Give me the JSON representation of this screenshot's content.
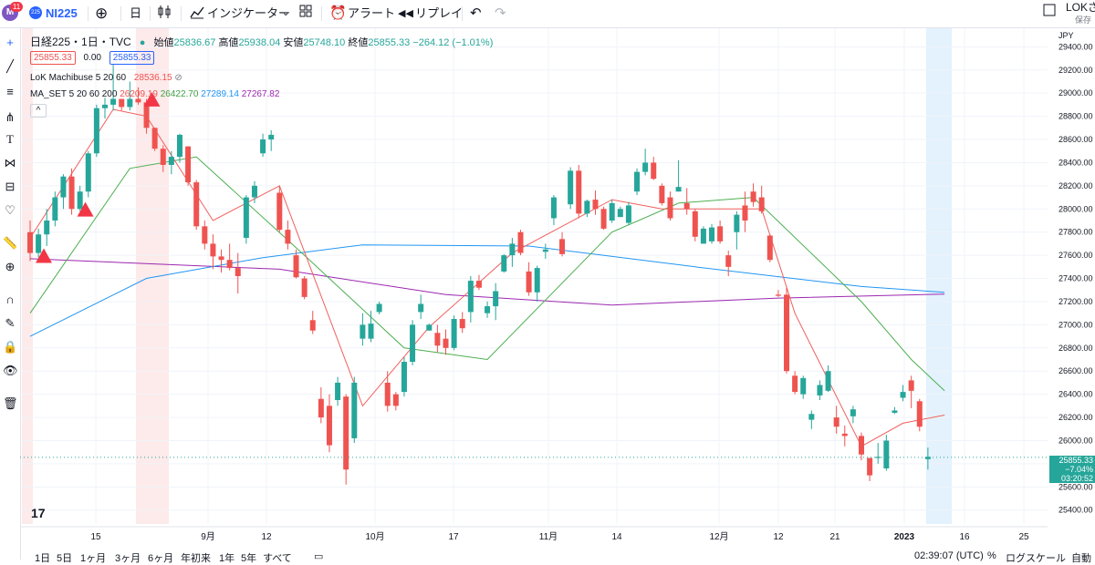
{
  "header": {
    "notif_count": "11",
    "avatar_letter": "M",
    "symbol_badge": "225",
    "symbol": "NI225",
    "interval": "日",
    "indicators_label": "インジケーター",
    "alert_label": "アラート",
    "replay_label": "リプレイ",
    "user": "LOKさん",
    "save_label": "保存"
  },
  "legend": {
    "title": "日経225・1日・TVC",
    "open_label": "始値",
    "open": "25836.67",
    "high_label": "高値",
    "high": "25938.04",
    "low_label": "安値",
    "low": "25748.10",
    "close_label": "終値",
    "close": "25855.33",
    "change": "−264.12 (−1.01%)",
    "bid": "25855.33",
    "spread": "0.00",
    "ask": "25855.33",
    "ind1_name": "LoK Machibuse 5 20 60",
    "ind1_value": "28536.15",
    "ind2_name": "MA_SET 5 20 60 200",
    "ind2_v1": "26209.19",
    "ind2_v2": "26422.70",
    "ind2_v3": "27289.14",
    "ind2_v4": "27267.82",
    "collapse": "^"
  },
  "price_axis": {
    "currency": "JPY",
    "last_price": "25855.33",
    "last_change": "−7.04%",
    "countdown": "03:20:52"
  },
  "bottom": {
    "ranges": [
      "1日",
      "5日",
      "1ヶ月",
      "3ヶ月",
      "6ヶ月",
      "年初来",
      "1年",
      "5年",
      "すべて"
    ],
    "time": "02:39:07 (UTC)",
    "percent": "%",
    "log_scale": "ログスケール",
    "auto": "自動"
  },
  "colors": {
    "up": "#26a69a",
    "down": "#ef5350",
    "ma5": "#f0605d",
    "ma20": "#4caf50",
    "ma60": "#2196f3",
    "ma200": "#9c27b0",
    "accent": "#2962ff"
  },
  "chart_data": {
    "type": "candlestick",
    "xlabels": [
      "15",
      "9月",
      "12",
      "10月",
      "17",
      "11月",
      "14",
      "12月",
      "12",
      "21",
      "2023",
      "16",
      "25"
    ],
    "yticks": [
      25400,
      25600,
      25800,
      26000,
      26200,
      26400,
      26600,
      26800,
      27000,
      27200,
      27400,
      27600,
      27800,
      28000,
      28200,
      28400,
      28600,
      28800,
      29000,
      29200,
      29400
    ],
    "ylim": [
      25280,
      29560
    ],
    "candles": [
      [
        27800,
        27900,
        27550,
        27620
      ],
      [
        27620,
        27830,
        27580,
        27780
      ],
      [
        27780,
        28000,
        27680,
        27900
      ],
      [
        27900,
        28150,
        27850,
        28100
      ],
      [
        28100,
        28300,
        28000,
        28280
      ],
      [
        28280,
        28350,
        27950,
        28000
      ],
      [
        28000,
        28200,
        27980,
        28150
      ],
      [
        28150,
        28500,
        28100,
        28480
      ],
      [
        28480,
        28900,
        28450,
        28870
      ],
      [
        28870,
        28960,
        28780,
        28900
      ],
      [
        28900,
        29250,
        28850,
        28950
      ],
      [
        28950,
        28950,
        28850,
        28880
      ],
      [
        28880,
        29100,
        28850,
        28950
      ],
      [
        28950,
        29050,
        28900,
        28920
      ],
      [
        28920,
        28950,
        28650,
        28700
      ],
      [
        28700,
        28700,
        28500,
        28520
      ],
      [
        28520,
        28550,
        28320,
        28380
      ],
      [
        28380,
        28500,
        28300,
        28450
      ],
      [
        28450,
        28650,
        28400,
        28640
      ],
      [
        28540,
        28540,
        28200,
        28230
      ],
      [
        28230,
        28250,
        27820,
        27850
      ],
      [
        27850,
        27900,
        27650,
        27700
      ],
      [
        27700,
        27780,
        27480,
        27590
      ],
      [
        27590,
        27650,
        27450,
        27560
      ],
      [
        27560,
        27700,
        27470,
        27490
      ],
      [
        27490,
        27620,
        27270,
        27420
      ],
      [
        27750,
        28120,
        27700,
        28100
      ],
      [
        28100,
        28240,
        28050,
        28200
      ],
      [
        28480,
        28650,
        28450,
        28600
      ],
      [
        28600,
        28680,
        28500,
        28640
      ],
      [
        28140,
        28200,
        27800,
        27820
      ],
      [
        27820,
        27900,
        27650,
        27700
      ],
      [
        27600,
        27650,
        27400,
        27410
      ],
      [
        27400,
        27420,
        27220,
        27240
      ],
      [
        27040,
        27120,
        26920,
        26950
      ],
      [
        26360,
        26460,
        26150,
        26200
      ],
      [
        26300,
        26400,
        25900,
        25960
      ],
      [
        26350,
        26550,
        26300,
        26500
      ],
      [
        26380,
        26400,
        25620,
        25750
      ],
      [
        26020,
        26550,
        25980,
        26500
      ],
      [
        26880,
        27100,
        26820,
        27000
      ],
      [
        26880,
        27120,
        26850,
        27010
      ],
      [
        27110,
        27200,
        27090,
        27180
      ],
      [
        26500,
        26600,
        26250,
        26300
      ],
      [
        26400,
        26420,
        26260,
        26300
      ],
      [
        26420,
        26720,
        26380,
        26680
      ],
      [
        26680,
        27040,
        26650,
        27000
      ],
      [
        27110,
        27260,
        27050,
        27180
      ],
      [
        26950,
        27010,
        26950,
        27000
      ],
      [
        26930,
        27000,
        26760,
        26820
      ],
      [
        26880,
        26960,
        26740,
        26800
      ],
      [
        26800,
        27080,
        26780,
        27050
      ],
      [
        27050,
        27110,
        26930,
        26970
      ],
      [
        27110,
        27420,
        27020,
        27380
      ],
      [
        27380,
        27430,
        27300,
        27320
      ],
      [
        27100,
        27200,
        27060,
        27160
      ],
      [
        27160,
        27360,
        27040,
        27290
      ],
      [
        27460,
        27610,
        27450,
        27600
      ],
      [
        27600,
        27750,
        27500,
        27700
      ],
      [
        27800,
        27820,
        27600,
        27620
      ],
      [
        27460,
        27540,
        27250,
        27280
      ],
      [
        27280,
        27510,
        27200,
        27490
      ],
      [
        27630,
        27700,
        27570,
        27650
      ],
      [
        27920,
        28120,
        27860,
        28100
      ],
      [
        27740,
        27800,
        27590,
        27610
      ],
      [
        28040,
        28360,
        28000,
        28330
      ],
      [
        28330,
        28380,
        27920,
        27960
      ],
      [
        27960,
        28080,
        27930,
        28070
      ],
      [
        28080,
        28160,
        27950,
        28000
      ],
      [
        28000,
        28020,
        27820,
        27830
      ],
      [
        27900,
        28080,
        27880,
        28050
      ],
      [
        27930,
        28020,
        27930,
        28000
      ],
      [
        27880,
        28060,
        27860,
        28030
      ],
      [
        28150,
        28350,
        28120,
        28320
      ],
      [
        28320,
        28520,
        28290,
        28400
      ],
      [
        28400,
        28450,
        28250,
        28260
      ],
      [
        28200,
        28220,
        28030,
        28050
      ],
      [
        28100,
        28150,
        27900,
        27920
      ],
      [
        28150,
        28420,
        28150,
        28190
      ],
      [
        28050,
        28180,
        27950,
        28000
      ],
      [
        27980,
        28000,
        27720,
        27760
      ],
      [
        27700,
        27850,
        27700,
        27830
      ],
      [
        27720,
        27870,
        27700,
        27840
      ],
      [
        27850,
        27900,
        27700,
        27720
      ],
      [
        27600,
        27640,
        27420,
        27500
      ],
      [
        27800,
        27980,
        27650,
        27950
      ],
      [
        28030,
        28150,
        27800,
        27900
      ],
      [
        28150,
        28220,
        28020,
        28060
      ],
      [
        28100,
        28200,
        27960,
        27980
      ],
      [
        27770,
        27780,
        27540,
        27560
      ],
      [
        27260,
        27300,
        27240,
        27250
      ],
      [
        27260,
        27320,
        26580,
        26600
      ],
      [
        26560,
        26600,
        26400,
        26420
      ],
      [
        26400,
        26560,
        26360,
        26540
      ],
      [
        26180,
        26260,
        26100,
        26230
      ],
      [
        26390,
        26520,
        26350,
        26480
      ],
      [
        26430,
        26650,
        26420,
        26600
      ],
      [
        26200,
        26300,
        26060,
        26120
      ],
      [
        26060,
        26130,
        25950,
        26040
      ],
      [
        26210,
        26300,
        26150,
        26270
      ],
      [
        26040,
        26070,
        25830,
        25880
      ],
      [
        25850,
        25850,
        25650,
        25700
      ],
      [
        25850,
        25980,
        25800,
        25860
      ],
      [
        25760,
        26050,
        25740,
        26000
      ],
      [
        26240,
        26290,
        26230,
        26260
      ],
      [
        26370,
        26480,
        26340,
        26420
      ],
      [
        26520,
        26560,
        26280,
        26430
      ],
      [
        26340,
        26360,
        26080,
        26120
      ],
      [
        25840,
        25940,
        25750,
        25860
      ]
    ],
    "ma5": [
      [
        0,
        27750
      ],
      [
        10,
        28860
      ],
      [
        14,
        28800
      ],
      [
        22,
        27900
      ],
      [
        30,
        28200
      ],
      [
        40,
        26300
      ],
      [
        48,
        26980
      ],
      [
        58,
        27620
      ],
      [
        70,
        28080
      ],
      [
        76,
        28000
      ],
      [
        88,
        28000
      ],
      [
        92,
        27100
      ],
      [
        100,
        25950
      ],
      [
        105,
        26150
      ],
      [
        110,
        26220
      ]
    ],
    "ma20": [
      [
        0,
        27100
      ],
      [
        12,
        28350
      ],
      [
        20,
        28450
      ],
      [
        33,
        27600
      ],
      [
        45,
        26800
      ],
      [
        55,
        26700
      ],
      [
        70,
        27800
      ],
      [
        78,
        28050
      ],
      [
        87,
        28100
      ],
      [
        100,
        27200
      ],
      [
        106,
        26700
      ],
      [
        110,
        26430
      ]
    ],
    "ma60": [
      [
        0,
        26900
      ],
      [
        14,
        27400
      ],
      [
        28,
        27580
      ],
      [
        40,
        27690
      ],
      [
        60,
        27680
      ],
      [
        80,
        27500
      ],
      [
        100,
        27330
      ],
      [
        110,
        27280
      ]
    ],
    "ma200": [
      [
        0,
        27570
      ],
      [
        30,
        27480
      ],
      [
        50,
        27260
      ],
      [
        70,
        27170
      ],
      [
        90,
        27230
      ],
      [
        110,
        27265
      ]
    ],
    "signals_up": [
      0,
      5,
      13
    ]
  }
}
